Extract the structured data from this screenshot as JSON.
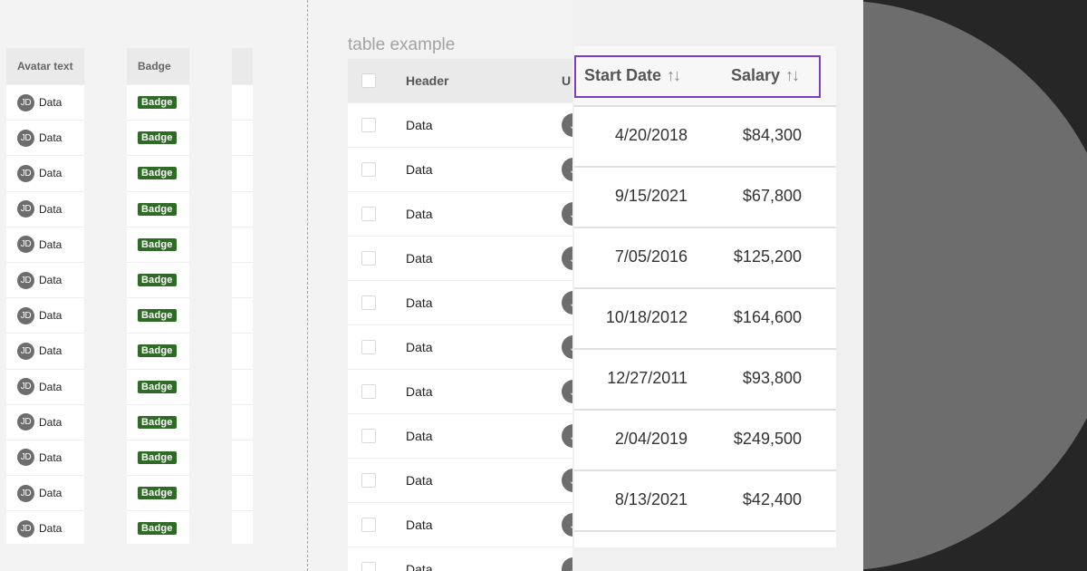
{
  "left_strip": {
    "columns": [
      "Avatar text",
      "Badge"
    ],
    "avatar_initials": "JD",
    "cell_text": "Data",
    "badge_label": "Badge",
    "row_count": 13
  },
  "middle_table": {
    "caption": "table example",
    "header_label": "Header",
    "header_cut_label": "U",
    "cell_text": "Data",
    "avatar_initial_cut": "J",
    "row_count": 11
  },
  "zoom_table": {
    "columns": [
      {
        "label": "Start Date",
        "sort_icon": "sort-arrows-icon"
      },
      {
        "label": "Salary",
        "sort_icon": "sort-arrows-icon"
      }
    ],
    "rows": [
      {
        "start_date": "4/20/2018",
        "salary": "$84,300"
      },
      {
        "start_date": "9/15/2021",
        "salary": "$67,800"
      },
      {
        "start_date": "7/05/2016",
        "salary": "$125,200"
      },
      {
        "start_date": "10/18/2012",
        "salary": "$164,600"
      },
      {
        "start_date": "12/27/2011",
        "salary": "$93,800"
      },
      {
        "start_date": "2/04/2019",
        "salary": "$249,500"
      },
      {
        "start_date": "8/13/2021",
        "salary": "$42,400"
      }
    ]
  },
  "colors": {
    "badge_green": "#2f6b26",
    "focus_purple": "#7a3ec4",
    "dashed_guide": "#b58ee0",
    "dark_background": "#262626",
    "disc_gray": "#6d6d6d"
  }
}
